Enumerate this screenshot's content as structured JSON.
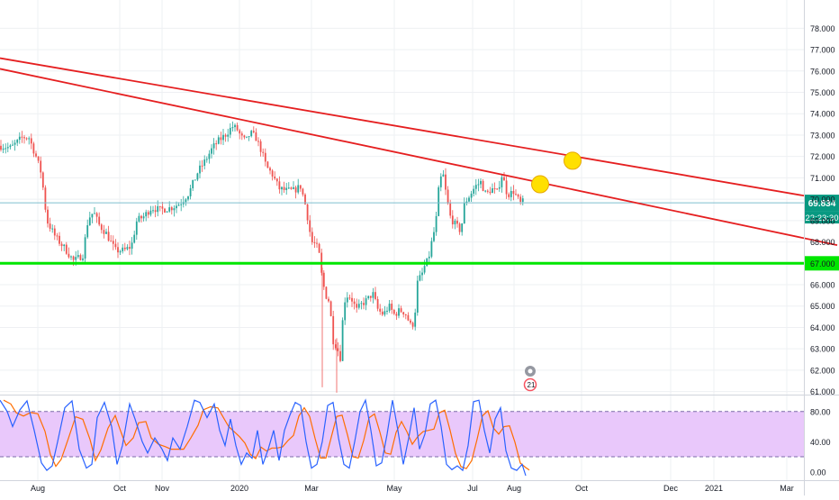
{
  "chart_data": [
    {
      "type": "candlestick",
      "title": "",
      "xlabel": "",
      "ylabel": "",
      "ylim": [
        60.9,
        78.9
      ],
      "x_tick_labels": [
        "Aug",
        "Oct",
        "Nov",
        "2020",
        "Mar",
        "May",
        "Jul",
        "Aug",
        "Oct",
        "Dec",
        "2021",
        "Mar"
      ],
      "y_tick_labels": [
        "78.000",
        "77.000",
        "76.000",
        "75.000",
        "74.000",
        "73.000",
        "72.000",
        "71.000",
        "70.000",
        "69.000",
        "68.000",
        "67.000",
        "66.000",
        "65.000",
        "64.000",
        "63.000",
        "62.000",
        "61.000"
      ],
      "y_ticks": [
        78,
        77,
        76,
        75,
        74,
        73,
        72,
        71,
        70,
        69,
        68,
        67,
        66,
        65,
        64,
        63,
        62,
        61
      ],
      "x_range": [
        0,
        930
      ],
      "price_path_x": [
        0,
        12,
        25,
        32,
        40,
        46,
        52,
        62,
        72,
        82,
        92,
        98,
        104,
        110,
        118,
        128,
        138,
        146,
        152,
        160,
        168,
        178,
        190,
        200,
        210,
        220,
        228,
        236,
        242,
        250,
        258,
        263,
        268,
        273,
        278,
        284,
        290,
        296,
        302,
        310,
        318,
        326,
        334,
        340,
        346,
        350,
        354,
        358,
        362,
        366,
        370,
        374,
        378,
        382,
        386,
        390,
        396,
        402,
        408,
        414,
        420,
        426,
        432,
        438,
        444,
        450,
        456,
        460,
        464,
        468,
        472,
        476,
        480,
        484,
        488,
        492,
        496,
        500,
        504,
        508,
        512,
        516,
        522,
        528,
        534,
        540,
        546,
        552,
        558,
        562,
        566,
        570,
        574,
        578,
        582
      ],
      "price_path_y": [
        72.5,
        72.4,
        72.9,
        72.9,
        72.0,
        71.2,
        69.0,
        68.2,
        67.7,
        67.1,
        67.4,
        69.1,
        69.4,
        68.8,
        68.4,
        67.6,
        67.6,
        67.8,
        69.0,
        69.2,
        69.6,
        69.5,
        69.6,
        69.8,
        70.3,
        71.3,
        71.8,
        72.4,
        72.7,
        73.0,
        73.4,
        73.3,
        72.9,
        72.7,
        73.1,
        72.9,
        72.3,
        71.5,
        71.2,
        70.5,
        70.4,
        70.4,
        70.6,
        69.6,
        68.0,
        67.9,
        67.6,
        66.2,
        65.5,
        65.2,
        63.4,
        63.1,
        62.6,
        65.2,
        65.5,
        65.4,
        64.8,
        65.1,
        65.3,
        65.6,
        64.8,
        64.6,
        65.0,
        64.6,
        64.8,
        64.7,
        64.1,
        64.2,
        66.2,
        66.4,
        66.9,
        67.2,
        68.1,
        68.8,
        70.8,
        71.2,
        70.1,
        69.2,
        68.9,
        68.7,
        68.5,
        69.8,
        70.2,
        70.6,
        70.8,
        70.2,
        70.5,
        70.3,
        71.2,
        70.4,
        70.2,
        70.4,
        70.1,
        69.8,
        69.9
      ]
    },
    {
      "type": "line",
      "indicator": "stochastic-oscillator",
      "ylim": [
        -0.11,
        1.0
      ],
      "y_tick_labels": [
        "80.00",
        "40.00",
        "0.00"
      ],
      "y_ticks": [
        0.8,
        0.4,
        0.0
      ],
      "band": [
        0.2,
        0.8
      ],
      "series_colors": [
        "#2962ff",
        "#ff6d00"
      ],
      "k_x": [
        0,
        8,
        14,
        22,
        30,
        38,
        46,
        52,
        58,
        64,
        72,
        80,
        88,
        96,
        102,
        108,
        116,
        124,
        130,
        136,
        144,
        150,
        158,
        164,
        172,
        180,
        186,
        192,
        200,
        208,
        216,
        222,
        230,
        238,
        244,
        250,
        256,
        262,
        268,
        274,
        280,
        286,
        292,
        298,
        304,
        310,
        316,
        322,
        328,
        334,
        340,
        346,
        352,
        358,
        364,
        370,
        376,
        382,
        388,
        394,
        400,
        406,
        412,
        418,
        424,
        430,
        436,
        442,
        448,
        454,
        460,
        466,
        472,
        478,
        484,
        490,
        496,
        502,
        508,
        514,
        520,
        526,
        532,
        538,
        544,
        550,
        556,
        562,
        568,
        574,
        580,
        584
      ],
      "k_values": [
        0.95,
        0.8,
        0.6,
        0.82,
        0.94,
        0.55,
        0.12,
        0.02,
        0.08,
        0.4,
        0.85,
        0.94,
        0.3,
        0.05,
        0.1,
        0.72,
        0.92,
        0.6,
        0.1,
        0.35,
        0.9,
        0.7,
        0.4,
        0.25,
        0.45,
        0.3,
        0.15,
        0.45,
        0.3,
        0.6,
        0.95,
        0.92,
        0.72,
        0.9,
        0.55,
        0.35,
        0.7,
        0.35,
        0.1,
        0.25,
        0.18,
        0.55,
        0.1,
        0.3,
        0.55,
        0.15,
        0.55,
        0.75,
        0.92,
        0.88,
        0.4,
        0.05,
        0.1,
        0.4,
        0.88,
        0.92,
        0.45,
        0.1,
        0.05,
        0.4,
        0.8,
        0.95,
        0.55,
        0.08,
        0.12,
        0.5,
        0.95,
        0.55,
        0.1,
        0.45,
        0.85,
        0.3,
        0.5,
        0.9,
        0.95,
        0.6,
        0.1,
        0.03,
        0.08,
        0.02,
        0.35,
        0.93,
        0.95,
        0.55,
        0.25,
        0.7,
        0.85,
        0.28,
        0.05,
        0.02,
        0.1,
        -0.05
      ],
      "d_offset": 4
    }
  ],
  "overlays": {
    "price_label": "69.834",
    "time_label": "22:23:30",
    "price_label_color": "#089981",
    "support_price": 67.0,
    "support_color": "#00e600",
    "current_price_line_color": "#7fbfcf",
    "trendline_color": "#e51f20",
    "trendline_upper": {
      "x": [
        0,
        930
      ],
      "y": [
        76.6,
        69.9
      ]
    },
    "trendline_lower": {
      "x": [
        0,
        930
      ],
      "y": [
        76.1,
        67.85
      ]
    },
    "marker_color": "#ffe000",
    "markers": [
      {
        "x": 636,
        "price": 71.8
      },
      {
        "x": 600,
        "price": 70.7
      }
    ],
    "event_badge_count": "21",
    "colors": {
      "up": "#26a69a",
      "down": "#ef5350",
      "band_fill": "#e9c8fb",
      "band_line": "#7b6ba8"
    }
  }
}
